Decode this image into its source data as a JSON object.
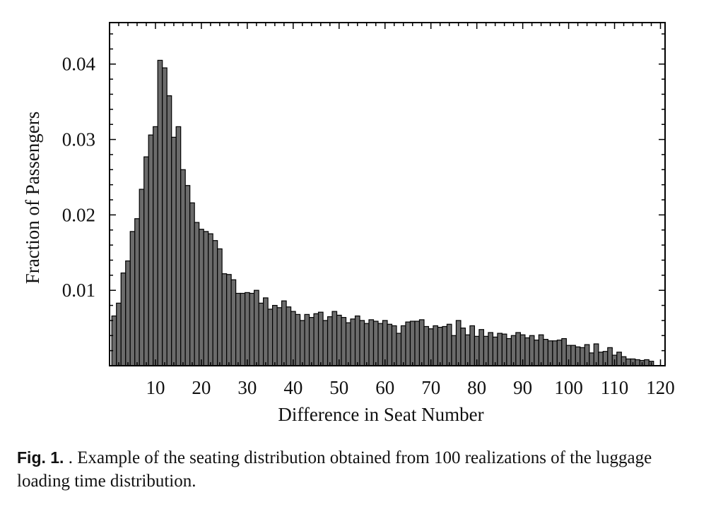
{
  "chart_data": {
    "type": "bar",
    "xlabel": "Difference in Seat Number",
    "ylabel": "Fraction of Passengers",
    "xlim": [
      0,
      121
    ],
    "ylim": [
      0,
      0.0455
    ],
    "x_ticks": [
      10,
      20,
      30,
      40,
      50,
      60,
      70,
      80,
      90,
      100,
      110,
      120
    ],
    "y_ticks": [
      0.01,
      0.02,
      0.03,
      0.04
    ],
    "x_tick_labels": [
      "10",
      "20",
      "30",
      "40",
      "50",
      "60",
      "70",
      "80",
      "90",
      "100",
      "110",
      "120"
    ],
    "y_tick_labels": [
      "0.01",
      "0.02",
      "0.03",
      "0.04"
    ],
    "grid": false,
    "bar_color": "#6b6b6b",
    "x": [
      1,
      2,
      3,
      4,
      5,
      6,
      7,
      8,
      9,
      10,
      11,
      12,
      13,
      14,
      15,
      16,
      17,
      18,
      19,
      20,
      21,
      22,
      23,
      24,
      25,
      26,
      27,
      28,
      29,
      30,
      31,
      32,
      33,
      34,
      35,
      36,
      37,
      38,
      39,
      40,
      41,
      42,
      43,
      44,
      45,
      46,
      47,
      48,
      49,
      50,
      51,
      52,
      53,
      54,
      55,
      56,
      57,
      58,
      59,
      60,
      61,
      62,
      63,
      64,
      65,
      66,
      67,
      68,
      69,
      70,
      71,
      72,
      73,
      74,
      75,
      76,
      77,
      78,
      79,
      80,
      81,
      82,
      83,
      84,
      85,
      86,
      87,
      88,
      89,
      90,
      91,
      92,
      93,
      94,
      95,
      96,
      97,
      98,
      99,
      100,
      101,
      102,
      103,
      104,
      105,
      106,
      107,
      108,
      109,
      110,
      111,
      112,
      113,
      114,
      115,
      116,
      117,
      118
    ],
    "values": [
      0.0066,
      0.0083,
      0.0123,
      0.0139,
      0.0178,
      0.0195,
      0.0234,
      0.0277,
      0.0306,
      0.0317,
      0.0405,
      0.0395,
      0.0358,
      0.0303,
      0.0317,
      0.026,
      0.0239,
      0.0216,
      0.019,
      0.0181,
      0.0178,
      0.0175,
      0.0166,
      0.0155,
      0.0122,
      0.0121,
      0.0114,
      0.0096,
      0.0096,
      0.0097,
      0.0096,
      0.01,
      0.0083,
      0.009,
      0.0075,
      0.008,
      0.0077,
      0.0086,
      0.0078,
      0.0072,
      0.0068,
      0.006,
      0.0068,
      0.0064,
      0.0069,
      0.0071,
      0.006,
      0.0065,
      0.0072,
      0.0067,
      0.0064,
      0.0057,
      0.0062,
      0.0066,
      0.006,
      0.0056,
      0.0061,
      0.0059,
      0.0056,
      0.006,
      0.0055,
      0.0053,
      0.0043,
      0.0053,
      0.0058,
      0.0059,
      0.0059,
      0.0061,
      0.0052,
      0.0049,
      0.0053,
      0.0051,
      0.0052,
      0.0055,
      0.004,
      0.006,
      0.005,
      0.0041,
      0.0053,
      0.0039,
      0.0048,
      0.0039,
      0.0044,
      0.0038,
      0.0043,
      0.0042,
      0.0036,
      0.004,
      0.0044,
      0.0041,
      0.0037,
      0.004,
      0.0034,
      0.0041,
      0.0035,
      0.0033,
      0.0033,
      0.0034,
      0.0036,
      0.0027,
      0.0027,
      0.0025,
      0.0024,
      0.0028,
      0.0017,
      0.0029,
      0.0018,
      0.0019,
      0.0024,
      0.0014,
      0.0018,
      0.0012,
      0.0009,
      0.0009,
      0.0008,
      0.0007,
      0.0008,
      0.0006
    ]
  },
  "caption": {
    "prefix": "Fig. 1.",
    "text": " . Example of the seating distribution obtained from 100 realizations of the luggage loading time distribution."
  }
}
